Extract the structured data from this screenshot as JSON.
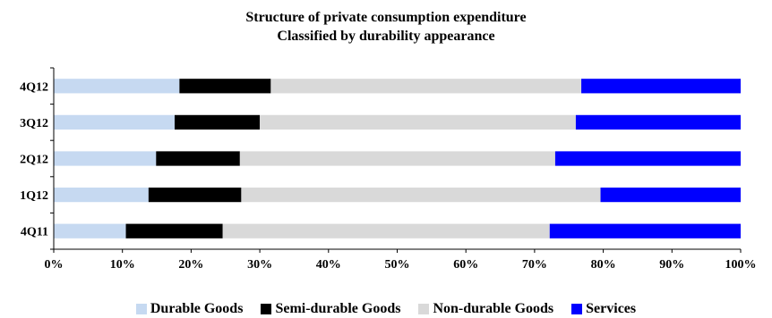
{
  "chart_data": {
    "type": "bar",
    "orientation": "horizontal",
    "stacked": "percent",
    "title": "Structure of private consumption expenditure",
    "subtitle": "Classified by durability appearance",
    "categories": [
      "4Q12",
      "3Q12",
      "2Q12",
      "1Q12",
      "4Q11"
    ],
    "series": [
      {
        "name": "Durable Goods",
        "color": "#c6d9f1",
        "values": [
          18.3,
          17.6,
          14.9,
          13.8,
          10.5
        ]
      },
      {
        "name": "Semi-durable Goods",
        "color": "#000000",
        "values": [
          13.3,
          12.4,
          12.2,
          13.5,
          14.1
        ]
      },
      {
        "name": "Non-durable Goods",
        "color": "#d9d9d9",
        "values": [
          45.2,
          46.0,
          45.9,
          52.3,
          47.6
        ]
      },
      {
        "name": "Services",
        "color": "#0000ff",
        "values": [
          23.2,
          24.0,
          27.0,
          20.4,
          27.8
        ]
      }
    ],
    "xlim": [
      0,
      100
    ],
    "xticks": [
      "0%",
      "10%",
      "20%",
      "30%",
      "40%",
      "50%",
      "60%",
      "70%",
      "80%",
      "90%",
      "100%"
    ],
    "grid": false,
    "legend_position": "bottom"
  }
}
